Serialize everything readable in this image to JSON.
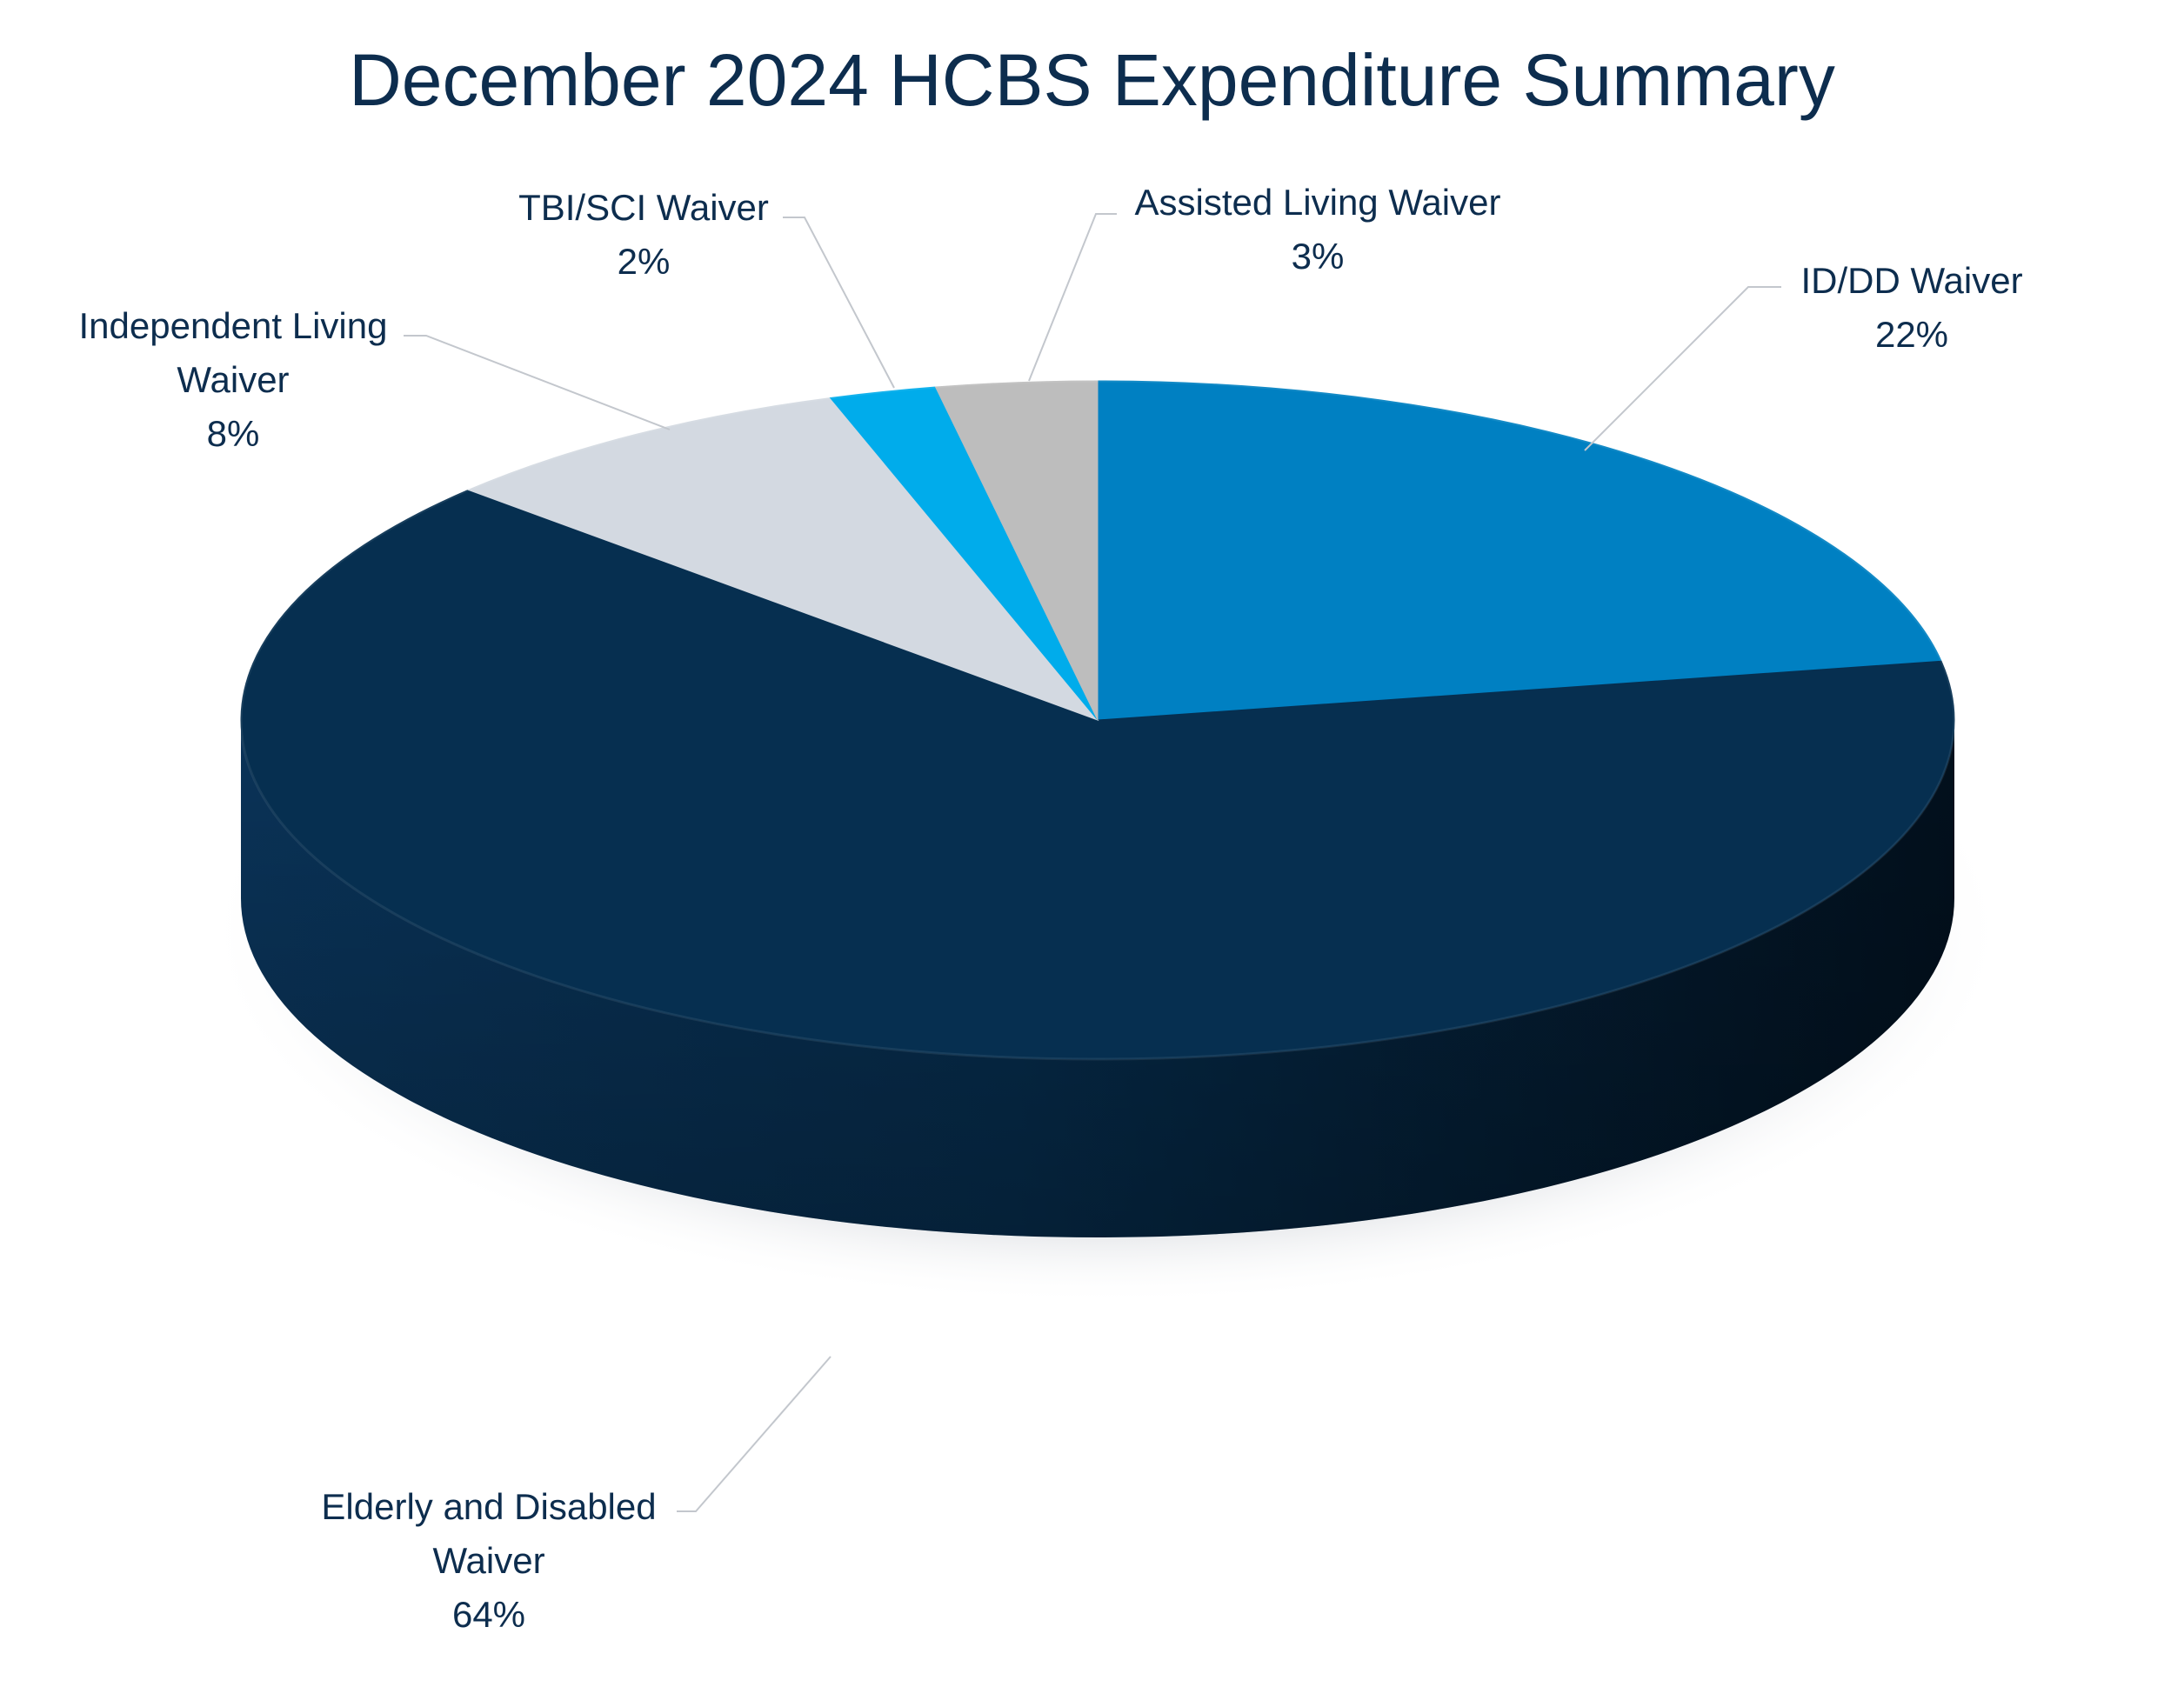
{
  "chart_data": {
    "type": "pie",
    "title": "December 2024 HCBS Expenditure Summary",
    "categories": [
      "ID/DD Waiver",
      "Elderly and Disabled Waiver",
      "Independent Living Waiver",
      "TBI/SCI Waiver",
      "Assisted Living Waiver"
    ],
    "values": [
      22,
      64,
      8,
      2,
      3
    ],
    "unit": "%",
    "colors": [
      "#0080c2",
      "#062f50",
      "#d3d9e1",
      "#00aceb",
      "#bdbdbd"
    ],
    "labels": [
      {
        "lines": [
          "ID/DD Waiver"
        ],
        "pct": "22%"
      },
      {
        "lines": [
          "Elderly and Disabled",
          "Waiver"
        ],
        "pct": "64%"
      },
      {
        "lines": [
          "Independent Living",
          "Waiver"
        ],
        "pct": "8%"
      },
      {
        "lines": [
          "TBI/SCI Waiver"
        ],
        "pct": "2%"
      },
      {
        "lines": [
          "Assisted Living Waiver"
        ],
        "pct": "3%"
      }
    ],
    "legend": "none",
    "style": "3d-pie",
    "start_angle": "12 o'clock, clockwise"
  }
}
